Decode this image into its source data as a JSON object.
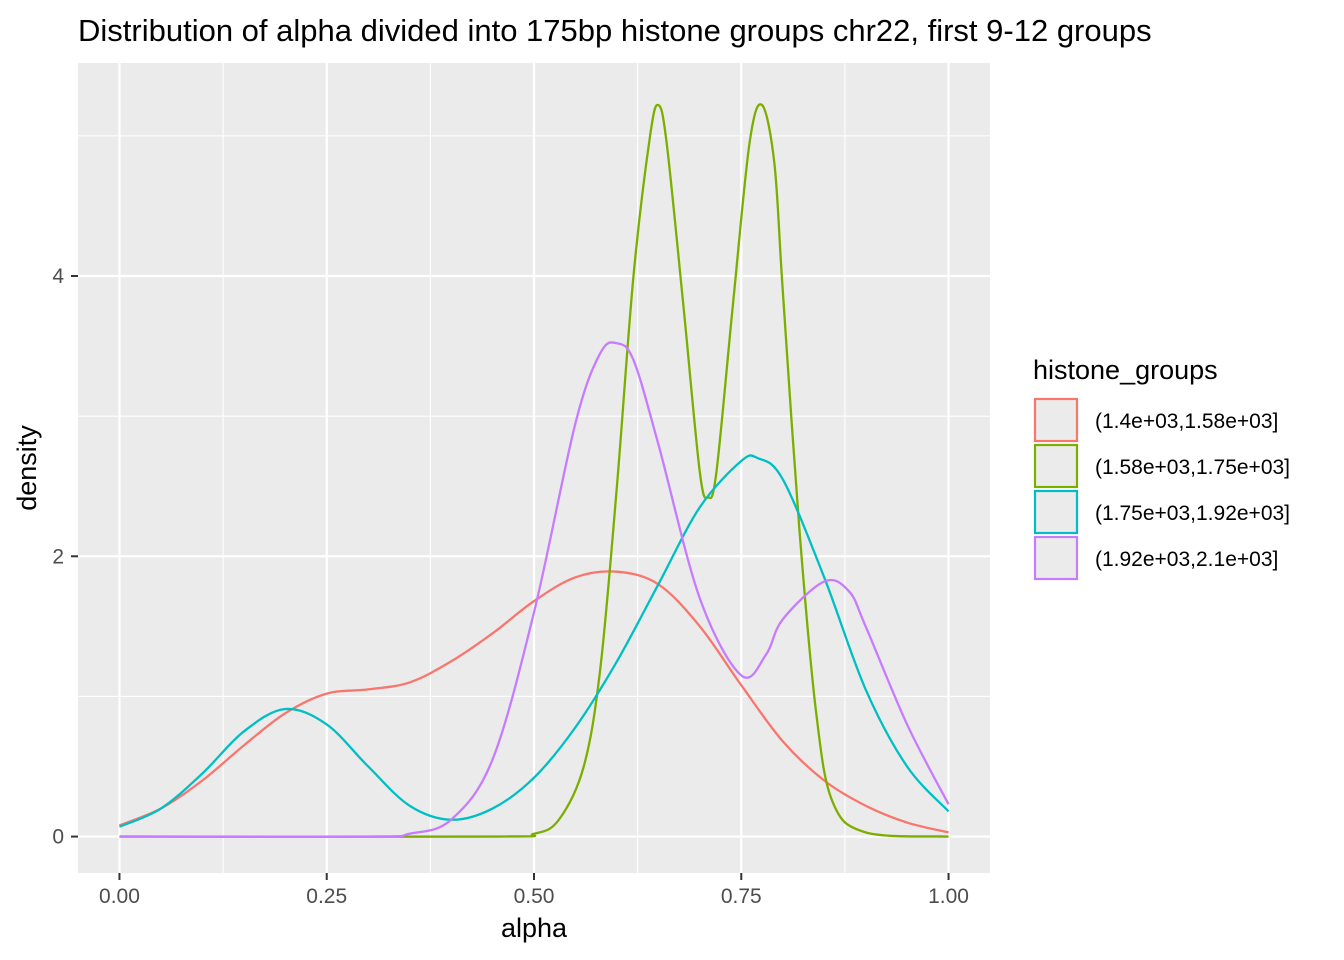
{
  "chart_data": {
    "type": "line",
    "title": "Distribution of alpha divided into 175bp histone groups chr22, first 9-12 groups",
    "xlabel": "alpha",
    "ylabel": "density",
    "xlim": [
      -0.05,
      1.05
    ],
    "ylim": [
      -0.26,
      5.52
    ],
    "x_ticks": [
      0.0,
      0.25,
      0.5,
      0.75,
      1.0
    ],
    "x_tick_labels": [
      "0.00",
      "0.25",
      "0.50",
      "0.75",
      "1.00"
    ],
    "y_ticks": [
      0,
      2,
      4
    ],
    "y_tick_labels": [
      "0",
      "2",
      "4"
    ],
    "grid": true,
    "background": "#ebebeb",
    "legend": {
      "title": "histone_groups",
      "position": "right"
    },
    "series": [
      {
        "name": "(1.4e+03,1.58e+03]",
        "color": "#f8766d",
        "x": [
          0.0,
          0.05,
          0.1,
          0.15,
          0.2,
          0.25,
          0.3,
          0.35,
          0.4,
          0.45,
          0.5,
          0.55,
          0.6,
          0.65,
          0.7,
          0.75,
          0.8,
          0.85,
          0.9,
          0.95,
          1.0
        ],
        "y": [
          0.08,
          0.2,
          0.4,
          0.65,
          0.88,
          1.02,
          1.05,
          1.1,
          1.25,
          1.45,
          1.68,
          1.85,
          1.89,
          1.8,
          1.5,
          1.08,
          0.68,
          0.4,
          0.22,
          0.1,
          0.03
        ]
      },
      {
        "name": "(1.58e+03,1.75e+03]",
        "color": "#7cae00",
        "x": [
          0.0,
          0.45,
          0.5,
          0.53,
          0.56,
          0.58,
          0.6,
          0.62,
          0.64,
          0.65,
          0.66,
          0.68,
          0.7,
          0.71,
          0.72,
          0.74,
          0.76,
          0.775,
          0.79,
          0.8,
          0.82,
          0.84,
          0.86,
          0.9,
          1.0
        ],
        "y": [
          0.0,
          0.0,
          0.02,
          0.12,
          0.5,
          1.2,
          2.5,
          4.0,
          5.0,
          5.22,
          4.95,
          3.8,
          2.6,
          2.42,
          2.6,
          3.8,
          4.95,
          5.22,
          4.8,
          3.9,
          2.2,
          0.9,
          0.25,
          0.03,
          0.0
        ]
      },
      {
        "name": "(1.75e+03,1.92e+03]",
        "color": "#00bfc4",
        "x": [
          0.0,
          0.05,
          0.1,
          0.15,
          0.2,
          0.25,
          0.3,
          0.35,
          0.4,
          0.45,
          0.5,
          0.55,
          0.6,
          0.65,
          0.7,
          0.75,
          0.77,
          0.8,
          0.85,
          0.9,
          0.95,
          1.0
        ],
        "y": [
          0.07,
          0.2,
          0.45,
          0.75,
          0.91,
          0.8,
          0.5,
          0.22,
          0.12,
          0.2,
          0.42,
          0.78,
          1.25,
          1.8,
          2.35,
          2.68,
          2.7,
          2.55,
          1.85,
          1.05,
          0.5,
          0.18
        ]
      },
      {
        "name": "(1.92e+03,2.1e+03]",
        "color": "#c77cff",
        "x": [
          0.0,
          0.3,
          0.35,
          0.4,
          0.45,
          0.5,
          0.55,
          0.58,
          0.6,
          0.62,
          0.65,
          0.7,
          0.75,
          0.78,
          0.8,
          0.85,
          0.88,
          0.9,
          0.95,
          1.0
        ],
        "y": [
          0.0,
          0.0,
          0.02,
          0.12,
          0.55,
          1.6,
          2.95,
          3.45,
          3.52,
          3.4,
          2.8,
          1.7,
          1.15,
          1.3,
          1.55,
          1.82,
          1.75,
          1.5,
          0.8,
          0.23
        ]
      }
    ]
  }
}
